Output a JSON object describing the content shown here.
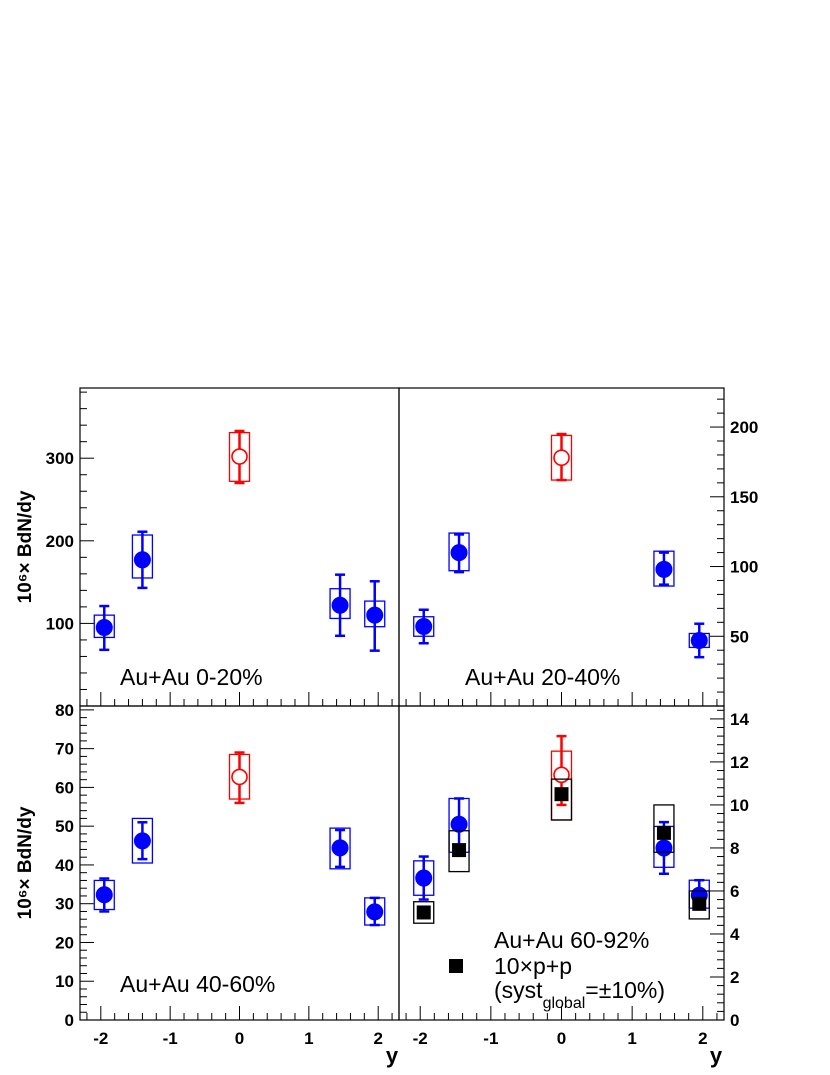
{
  "chart_data": [
    {
      "type": "scatter",
      "label": "Au+Au 0-20%",
      "ylabel": "10⁶× BdN/dy",
      "xlabel": "",
      "xlim": [
        -2.3,
        2.3
      ],
      "ylim": [
        0,
        385
      ],
      "yticks": [
        100,
        200,
        300
      ],
      "xticks": [
        "-2",
        "-1",
        "0",
        "1",
        "2"
      ],
      "series": [
        {
          "marker": "filled-circle",
          "color": "#0000ff",
          "points": [
            {
              "x": -1.95,
              "y": 95,
              "stat_lo": 68,
              "stat_hi": 121,
              "sys_lo": 83,
              "sys_hi": 110
            },
            {
              "x": -1.4,
              "y": 177,
              "stat_lo": 143,
              "stat_hi": 211,
              "sys_lo": 155,
              "sys_hi": 207
            },
            {
              "x": 1.45,
              "y": 122,
              "stat_lo": 85,
              "stat_hi": 159,
              "sys_lo": 106,
              "sys_hi": 142
            },
            {
              "x": 1.95,
              "y": 110,
              "stat_lo": 67,
              "stat_hi": 151,
              "sys_lo": 96,
              "sys_hi": 127
            }
          ]
        },
        {
          "marker": "open-circle",
          "color": "#ff0000",
          "points": [
            {
              "x": 0.0,
              "y": 302,
              "stat_lo": 270,
              "stat_hi": 333,
              "sys_lo": 272,
              "sys_hi": 331
            }
          ]
        }
      ]
    },
    {
      "type": "scatter",
      "label": "Au+Au 20-40%",
      "xlim": [
        -2.3,
        2.3
      ],
      "ylim": [
        0,
        228
      ],
      "yticks": [
        50,
        100,
        150,
        200
      ],
      "xticks": [
        "-2",
        "-1",
        "0",
        "1",
        "2"
      ],
      "series": [
        {
          "marker": "filled-circle",
          "color": "#0000ff",
          "points": [
            {
              "x": -1.95,
              "y": 57,
              "stat_lo": 45,
              "stat_hi": 69,
              "sys_lo": 50,
              "sys_hi": 64
            },
            {
              "x": -1.45,
              "y": 110,
              "stat_lo": 96,
              "stat_hi": 123,
              "sys_lo": 97,
              "sys_hi": 124
            },
            {
              "x": 1.45,
              "y": 98,
              "stat_lo": 87,
              "stat_hi": 110,
              "sys_lo": 86,
              "sys_hi": 111
            },
            {
              "x": 1.95,
              "y": 47,
              "stat_lo": 35,
              "stat_hi": 59,
              "sys_lo": 42,
              "sys_hi": 52
            }
          ]
        },
        {
          "marker": "open-circle",
          "color": "#ff0000",
          "points": [
            {
              "x": 0.0,
              "y": 178,
              "stat_lo": 162,
              "stat_hi": 195,
              "sys_lo": 162,
              "sys_hi": 194
            }
          ]
        }
      ]
    },
    {
      "type": "scatter",
      "label": "Au+Au 40-60%",
      "ylabel": "10⁶× BdN/dy",
      "xlabel": "y",
      "xlim": [
        -2.3,
        2.3
      ],
      "ylim": [
        0,
        81
      ],
      "yticks": [
        0,
        10,
        20,
        30,
        40,
        50,
        60,
        70,
        80
      ],
      "xticks": [
        "-2",
        "-1",
        "0",
        "1",
        "2"
      ],
      "series": [
        {
          "marker": "filled-circle",
          "color": "#0000ff",
          "points": [
            {
              "x": -1.95,
              "y": 32.3,
              "stat_lo": 28,
              "stat_hi": 36.5,
              "sys_lo": 28.5,
              "sys_hi": 36
            },
            {
              "x": -1.4,
              "y": 46.2,
              "stat_lo": 41.5,
              "stat_hi": 51,
              "sys_lo": 40.5,
              "sys_hi": 52
            },
            {
              "x": 1.45,
              "y": 44.4,
              "stat_lo": 39.5,
              "stat_hi": 49,
              "sys_lo": 39,
              "sys_hi": 49.5
            },
            {
              "x": 1.95,
              "y": 27.9,
              "stat_lo": 24.5,
              "stat_hi": 31.5,
              "sys_lo": 24.5,
              "sys_hi": 31.5
            }
          ]
        },
        {
          "marker": "open-circle",
          "color": "#ff0000",
          "points": [
            {
              "x": 0.0,
              "y": 62.7,
              "stat_lo": 56,
              "stat_hi": 69,
              "sys_lo": 57,
              "sys_hi": 68.5
            }
          ]
        }
      ]
    },
    {
      "type": "scatter",
      "label": "Au+Au 60-92%",
      "xlabel": "y",
      "xlim": [
        -2.3,
        2.3
      ],
      "ylim": [
        0,
        14.6
      ],
      "yticks": [
        0,
        2,
        4,
        6,
        8,
        10,
        12,
        14
      ],
      "xticks": [
        "-2",
        "-1",
        "0",
        "1",
        "2"
      ],
      "legend": {
        "marker_label": "10×p+p",
        "syst_prefix": "(syst",
        "syst_sub": "global",
        "syst_suffix": "=±10%)"
      },
      "series": [
        {
          "marker": "filled-circle",
          "color": "#0000ff",
          "points": [
            {
              "x": -1.95,
              "y": 6.6,
              "stat_lo": 5.6,
              "stat_hi": 7.6,
              "sys_lo": 5.8,
              "sys_hi": 7.4
            },
            {
              "x": -1.45,
              "y": 9.1,
              "stat_lo": 7.8,
              "stat_hi": 10.3,
              "sys_lo": 7.8,
              "sys_hi": 10.3
            },
            {
              "x": 1.45,
              "y": 8.0,
              "stat_lo": 6.8,
              "stat_hi": 9.2,
              "sys_lo": 7.1,
              "sys_hi": 9.0
            },
            {
              "x": 1.95,
              "y": 5.8,
              "stat_lo": 5.2,
              "stat_hi": 6.5,
              "sys_lo": 5.2,
              "sys_hi": 6.5
            }
          ]
        },
        {
          "marker": "open-circle",
          "color": "#ff0000",
          "points": [
            {
              "x": 0.0,
              "y": 11.4,
              "stat_lo": 10.0,
              "stat_hi": 13.2,
              "sys_lo": 9.3,
              "sys_hi": 12.5
            }
          ]
        },
        {
          "marker": "filled-square",
          "color": "#000000",
          "name": "10×p+p",
          "points": [
            {
              "x": -1.95,
              "y": 5.0,
              "sys_lo": 4.5,
              "sys_hi": 5.5
            },
            {
              "x": -1.45,
              "y": 7.9,
              "sys_lo": 6.9,
              "sys_hi": 8.8
            },
            {
              "x": 0.0,
              "y": 10.5,
              "sys_lo": 9.3,
              "sys_hi": 11.2
            },
            {
              "x": 1.45,
              "y": 8.7,
              "sys_lo": 7.8,
              "sys_hi": 10.0
            },
            {
              "x": 1.95,
              "y": 5.4,
              "sys_lo": 4.7,
              "sys_hi": 6.0
            }
          ]
        }
      ]
    }
  ]
}
